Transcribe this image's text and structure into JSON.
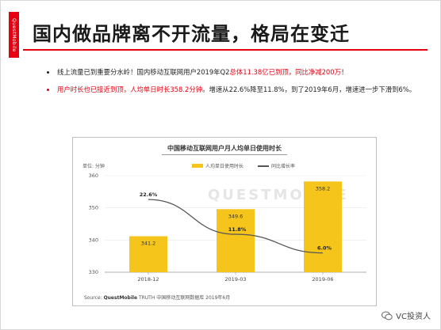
{
  "side_label": "QuestMobile",
  "title": "国内做品牌离不开流量，格局在变迁",
  "bullets": [
    {
      "parts": [
        {
          "text": "线上流量已到重要分水岭！国内移动互联网用户2019年Q2",
          "hl": false
        },
        {
          "text": "总体11.38亿已到顶，同比净减200万",
          "hl": true
        },
        {
          "text": "！",
          "hl": false
        }
      ]
    },
    {
      "parts": [
        {
          "text": "用户时长也已接近到顶，人均单日时长358.2分钟",
          "hl": true
        },
        {
          "text": "。增速从22.6%降至11.8%，到了2019年6月，增速进一步下滑到6%。",
          "hl": false
        }
      ]
    }
  ],
  "colors": {
    "accent": "#e60012",
    "bar": "#f5c51b",
    "line": "#555555"
  },
  "chart": {
    "title": "中国移动互联网用户月人均单日使用时长",
    "unit_label": "单位: 分钟",
    "legend_bar": "人均单日使用时长",
    "legend_line": "同比增长率",
    "watermark": "QUESTMOBILE",
    "source": "TRUTH 中国移动互联网数据库 2019年6月",
    "source_brand": "QuestMobile",
    "source_prefix": "Source:"
  },
  "chart_data": {
    "type": "bar",
    "categories": [
      "2018-12",
      "2019-03",
      "2019-06"
    ],
    "series": [
      {
        "name": "人均单日使用时长",
        "type": "bar",
        "values": [
          341.2,
          349.6,
          358.2
        ],
        "labels": [
          "341.2",
          "349.6",
          "358.2"
        ]
      },
      {
        "name": "同比增长率",
        "type": "line",
        "values": [
          22.6,
          11.8,
          6.0
        ],
        "labels": [
          "22.6%",
          "11.8%",
          "6.0%"
        ]
      }
    ],
    "y_ticks": [
      "330",
      "340",
      "350",
      "360"
    ],
    "ylim": [
      330,
      360
    ],
    "growth_range": [
      0,
      30
    ]
  },
  "footer": {
    "brand": "VC投资人"
  }
}
